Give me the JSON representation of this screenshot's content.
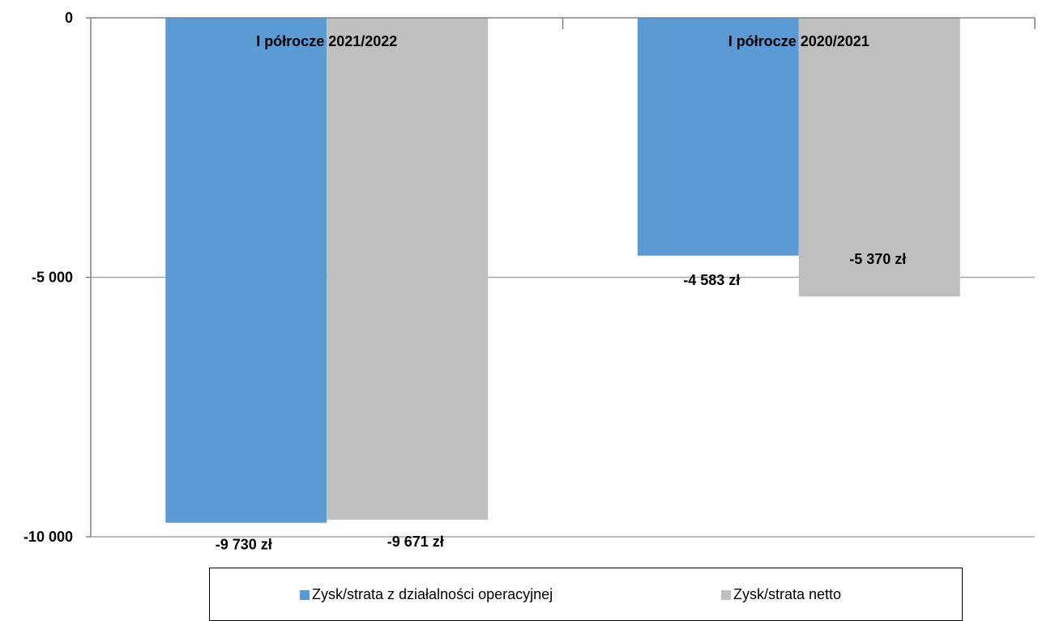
{
  "chart_data": {
    "type": "bar",
    "categories": [
      "I półrocze 2021/2022",
      "I półrocze 2020/2021"
    ],
    "series": [
      {
        "name": "Zysk/strata z działalności operacyjnej",
        "color": "#5b9bd5",
        "values": [
          -9730,
          -4583
        ],
        "labels": [
          "-9 730 zł",
          "-4 583 zł"
        ]
      },
      {
        "name": "Zysk/strata netto",
        "color": "#bfbfbf",
        "values": [
          -9671,
          -5370
        ],
        "labels": [
          "-9 671 zł",
          "-5 370 zł"
        ]
      }
    ],
    "ylim": [
      -10000,
      0
    ],
    "yticks": [
      0,
      -5000,
      -10000
    ],
    "ytick_labels": [
      "0",
      "-5 000",
      "-10 000"
    ],
    "grid": true,
    "gridline_color": "#a6a6a6",
    "legend_position": "bottom"
  }
}
